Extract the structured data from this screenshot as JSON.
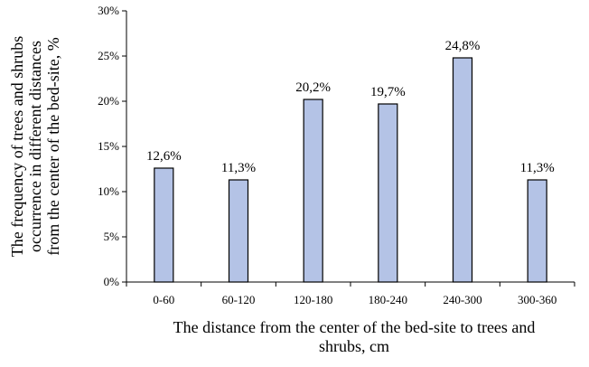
{
  "chart_data": {
    "type": "bar",
    "categories": [
      "0-60",
      "60-120",
      "120-180",
      "180-240",
      "240-300",
      "300-360"
    ],
    "values": [
      12.6,
      11.3,
      20.2,
      19.7,
      24.8,
      11.3
    ],
    "data_labels": [
      "12,6%",
      "11,3%",
      "20,2%",
      "19,7%",
      "24,8%",
      "11,3%"
    ],
    "ylim": [
      0,
      30
    ],
    "yticks": [
      0,
      5,
      10,
      15,
      20,
      25,
      30
    ],
    "ytick_labels": [
      "0%",
      "5%",
      "10%",
      "15%",
      "20%",
      "25%",
      "30%"
    ],
    "xlabel_lines": [
      "The distance from the center of the bed-site to trees and",
      "shrubs, cm"
    ],
    "ylabel_lines": [
      "The frequency of trees and shrubs",
      "occurrence in different distances",
      "from the center of the bed-site, %"
    ],
    "grid": false,
    "legend": "none",
    "bar_color": "#b4c3e6",
    "bar_edge_color": "#000000"
  }
}
